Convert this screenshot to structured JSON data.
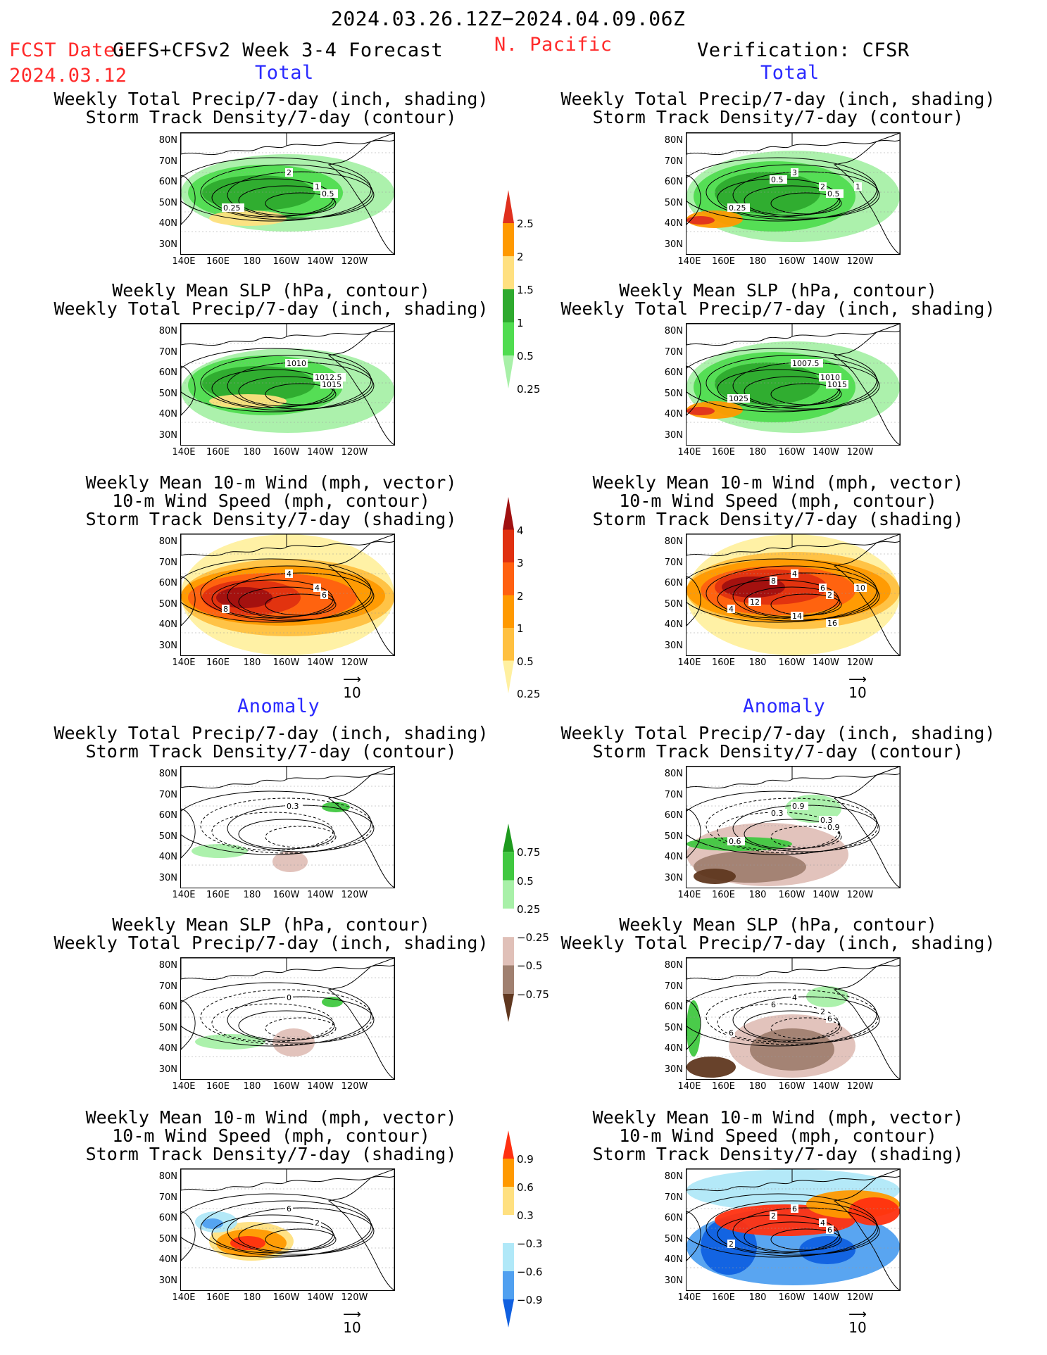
{
  "header": {
    "date_range": "2024.03.26.12Z−2024.04.09.06Z",
    "fcst_date_label": "FCST Date:",
    "fcst_model": "GEFS+CFSv2 Week 3-4 Forecast",
    "fcst_date_value": "2024.03.12",
    "region": "N. Pacific",
    "verification": "Verification: CFSR"
  },
  "section_labels": {
    "total": "Total",
    "anomaly": "Anomaly"
  },
  "panel_titles": {
    "precip_storm": "Weekly Total Precip/7-day (inch, shading)\nStorm Track Density/7-day (contour)",
    "slp_precip": "Weekly Mean SLP (hPa, contour)\nWeekly Total Precip/7-day (inch, shading)",
    "wind_storm": "Weekly Mean 10-m Wind (mph, vector)\n10-m Wind Speed (mph, contour)\nStorm Track Density/7-day (shading)"
  },
  "axes": {
    "lat_ticks": [
      "80N",
      "70N",
      "60N",
      "50N",
      "40N",
      "30N"
    ],
    "lon_ticks": [
      "140E",
      "160E",
      "180",
      "160W",
      "140W",
      "120W"
    ]
  },
  "vector_reference": "10",
  "colorbars": [
    {
      "id": "precip_total",
      "labels": [
        "2.5",
        "2",
        "1.5",
        "1",
        "0.5",
        "0.25"
      ],
      "colors": [
        "#e0301e",
        "#ff9900",
        "#ffe080",
        "#2eaa2e",
        "#50dc50",
        "#a8f0a8"
      ]
    },
    {
      "id": "storm_total",
      "labels": [
        "4",
        "3",
        "2",
        "1",
        "0.5",
        "0.25"
      ],
      "colors": [
        "#a01010",
        "#e03010",
        "#ff6010",
        "#ff9900",
        "#ffc040",
        "#fff0a0"
      ]
    },
    {
      "id": "precip_anom",
      "labels": [
        "0.75",
        "0.5",
        "0.25",
        "−0.25",
        "−0.5",
        "−0.75"
      ],
      "colors": [
        "#1e9a1e",
        "#40c840",
        "#a8f0a8",
        "#ffffff",
        "#e0c0b8",
        "#a08070",
        "#603820"
      ]
    },
    {
      "id": "storm_anom",
      "labels": [
        "0.9",
        "0.6",
        "0.3",
        "−0.3",
        "−0.6",
        "−0.9"
      ],
      "colors": [
        "#ff3010",
        "#ff9900",
        "#ffe080",
        "#ffffff",
        "#b0e8f8",
        "#50a0f0",
        "#1060e0"
      ]
    }
  ],
  "contour_labels": {
    "fp1": [
      "2",
      "1",
      "0.5",
      "0.25"
    ],
    "vp1": [
      "3",
      "2",
      "0.5",
      "0.25",
      "0.5",
      "1"
    ],
    "fp2": [
      "1010",
      "1012.5",
      "1015"
    ],
    "vp2": [
      "1007.5",
      "1010",
      "1015",
      "1025"
    ],
    "fp3": [
      "4",
      "4",
      "6",
      "8"
    ],
    "vp3": [
      "4",
      "6",
      "2",
      "4",
      "8",
      "10",
      "12",
      "14",
      "16"
    ],
    "fp4": [
      "0.3"
    ],
    "vp4": [
      "0.9",
      "0.3",
      "0.9",
      "0.6",
      "0.3"
    ],
    "fp5": [
      "0"
    ],
    "vp5": [
      "4",
      "2",
      "6",
      "6",
      "6"
    ],
    "fp6": [
      "6",
      "2"
    ],
    "vp6": [
      "6",
      "4",
      "6",
      "2",
      "2"
    ]
  }
}
